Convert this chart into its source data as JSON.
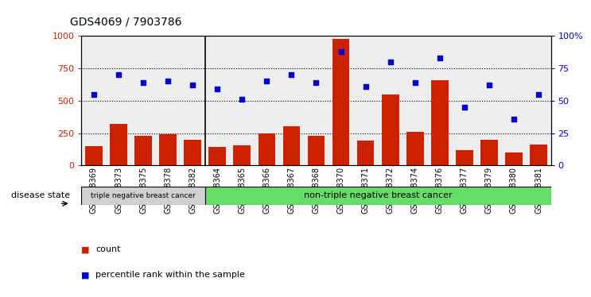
{
  "title": "GDS4069 / 7903786",
  "samples": [
    "GSM678369",
    "GSM678373",
    "GSM678375",
    "GSM678378",
    "GSM678382",
    "GSM678364",
    "GSM678365",
    "GSM678366",
    "GSM678367",
    "GSM678368",
    "GSM678370",
    "GSM678371",
    "GSM678372",
    "GSM678374",
    "GSM678376",
    "GSM678377",
    "GSM678379",
    "GSM678380",
    "GSM678381"
  ],
  "counts": [
    150,
    320,
    230,
    240,
    195,
    145,
    155,
    250,
    300,
    230,
    980,
    190,
    550,
    260,
    660,
    120,
    195,
    100,
    160
  ],
  "percentiles": [
    55,
    70,
    64,
    65,
    62,
    59,
    51,
    65,
    70,
    64,
    88,
    61,
    80,
    64,
    83,
    45,
    62,
    36,
    55
  ],
  "triple_neg_count": 5,
  "group1_label": "triple negative breast cancer",
  "group2_label": "non-triple negative breast cancer",
  "bar_color": "#cc2200",
  "dot_color": "#0000cc",
  "ylim_left": [
    0,
    1000
  ],
  "ylim_right": [
    0,
    100
  ],
  "yticks_left": [
    0,
    250,
    500,
    750,
    1000
  ],
  "yticks_right": [
    0,
    25,
    50,
    75,
    100
  ],
  "legend_count_label": "count",
  "legend_pct_label": "percentile rank within the sample",
  "disease_state_label": "disease state",
  "bg_color_triple": "#d0d0d0",
  "bg_color_non_triple": "#66dd66"
}
